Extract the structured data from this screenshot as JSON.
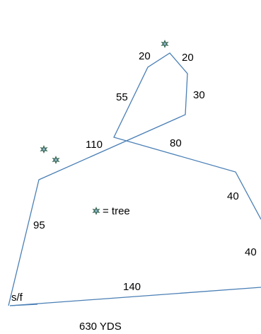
{
  "diagram": {
    "segment_labels": {
      "seg_20_left": "20",
      "seg_20_right": "20",
      "seg_30": "30",
      "seg_55": "55",
      "seg_110": "110",
      "seg_80": "80",
      "seg_40_upper": "40",
      "seg_40_lower": "40",
      "seg_95": "95",
      "seg_140": "140"
    },
    "start_label": "s/f",
    "total_label": "630 YDS",
    "legend_text": "= tree",
    "colors": {
      "route": "#4a7fb5",
      "tree": "#3c6b56",
      "tree_center": "#8cb4cc",
      "text": "#000000"
    }
  }
}
